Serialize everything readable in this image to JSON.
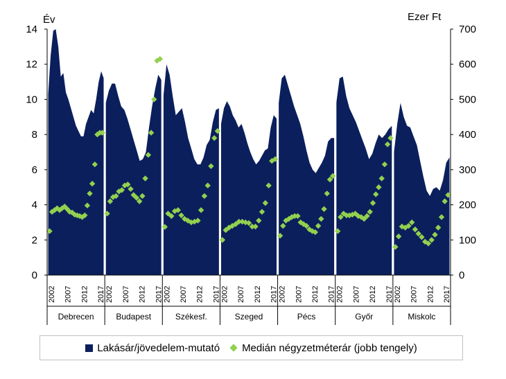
{
  "chart_data": {
    "type": "area",
    "left_axis_title": "Év",
    "right_axis_title": "Ezer Ft",
    "y_left": {
      "min": 0,
      "max": 14,
      "ticks": [
        0,
        2,
        4,
        6,
        8,
        10,
        12,
        14
      ]
    },
    "y_right": {
      "min": 0,
      "max": 700,
      "ticks": [
        0,
        100,
        200,
        300,
        400,
        500,
        600,
        700
      ]
    },
    "x_tick_labels": [
      "2002",
      "2007",
      "2012",
      "2017"
    ],
    "groups": [
      {
        "name": "Debrecen",
        "area": [
          10.3,
          12.5,
          13.9,
          14.0,
          13.0,
          11.3,
          11.5,
          10.4,
          10.0,
          9.5,
          9.0,
          8.5,
          8.2,
          7.9,
          7.9,
          8.6,
          9.0,
          9.4,
          9.2,
          10.0,
          11.0,
          11.6,
          11.2
        ],
        "median": [
          125,
          180,
          185,
          190,
          185,
          190,
          195,
          188,
          180,
          178,
          172,
          170,
          168,
          165,
          170,
          198,
          232,
          260,
          315,
          400,
          405,
          405
        ]
      },
      {
        "name": "Budapest",
        "area": [
          9.8,
          10.5,
          10.9,
          10.9,
          10.2,
          9.6,
          9.4,
          8.9,
          8.3,
          7.7,
          7.1,
          6.5,
          6.6,
          7.0,
          8.4,
          9.6,
          10.6,
          11.4,
          11.1
        ],
        "median": [
          175,
          210,
          222,
          225,
          238,
          242,
          255,
          258,
          245,
          228,
          220,
          210,
          225,
          275,
          342,
          405,
          500,
          610,
          615
        ]
      },
      {
        "name": "Székesf.",
        "area": [
          10.2,
          12.0,
          11.4,
          10.2,
          9.1,
          9.3,
          9.5,
          8.7,
          7.8,
          7.2,
          6.6,
          6.3,
          6.3,
          6.7,
          7.4,
          7.7,
          8.7,
          9.4,
          9.5
        ],
        "median": [
          137,
          175,
          168,
          182,
          185,
          170,
          160,
          155,
          150,
          152,
          155,
          185,
          225,
          255,
          310,
          390,
          410
        ]
      },
      {
        "name": "Szeged",
        "area": [
          8.6,
          9.5,
          9.9,
          9.6,
          9.1,
          8.8,
          8.4,
          8.6,
          8.1,
          7.5,
          7.0,
          6.6,
          6.3,
          6.5,
          6.8,
          7.1,
          7.2,
          8.4,
          9.1,
          8.9
        ],
        "median": [
          100,
          128,
          135,
          140,
          145,
          152,
          152,
          150,
          148,
          138,
          138,
          155,
          180,
          205,
          255,
          325,
          330
        ]
      },
      {
        "name": "Pécs",
        "area": [
          9.8,
          11.2,
          11.4,
          10.8,
          10.2,
          9.6,
          9.1,
          8.6,
          7.9,
          7.1,
          6.4,
          6.0,
          5.8,
          6.1,
          6.4,
          6.8,
          7.6,
          7.8,
          7.8
        ],
        "median": [
          112,
          140,
          155,
          160,
          165,
          168,
          168,
          150,
          145,
          140,
          130,
          125,
          122,
          140,
          160,
          188,
          232,
          272,
          282
        ]
      },
      {
        "name": "Győr",
        "area": [
          9.8,
          11.2,
          11.3,
          10.2,
          9.5,
          9.1,
          8.7,
          8.2,
          7.7,
          7.2,
          6.6,
          6.9,
          7.5,
          8.0,
          7.8,
          8.0,
          8.3,
          8.5
        ],
        "median": [
          125,
          165,
          175,
          170,
          170,
          172,
          175,
          168,
          165,
          160,
          168,
          180,
          205,
          230,
          250,
          275,
          315,
          372,
          390
        ]
      },
      {
        "name": "Miskolc",
        "area": [
          7.0,
          8.6,
          9.8,
          9.0,
          8.5,
          8.4,
          7.9,
          7.4,
          6.5,
          5.6,
          4.8,
          4.5,
          4.9,
          5.0,
          4.8,
          5.4,
          6.4,
          6.7
        ],
        "median": [
          80,
          110,
          138,
          135,
          140,
          150,
          130,
          118,
          108,
          95,
          90,
          100,
          115,
          135,
          165,
          210,
          228
        ]
      }
    ],
    "legend": {
      "area_label": "Lakásár/jövedelem-mutató",
      "median_label": "Medián négyzetméterár (jobb tengely)"
    },
    "colors": {
      "area": "#0b1f5c",
      "median": "#92d050",
      "separator": "#ffffff"
    }
  }
}
